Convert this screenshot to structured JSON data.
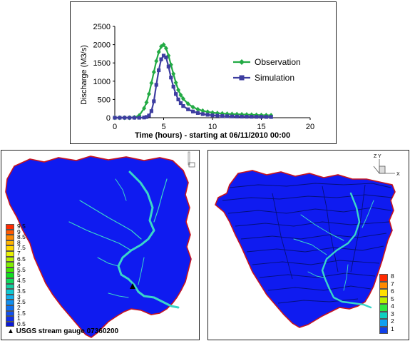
{
  "chart_data": {
    "type": "line",
    "title": "",
    "xlabel": "Time (hours) -   starting at 06/11/2010 00:00",
    "ylabel": "Discharge (M3/s)",
    "xlim": [
      0,
      20
    ],
    "ylim": [
      0,
      2500
    ],
    "x_ticks": [
      "0",
      "5",
      "10",
      "15",
      "20"
    ],
    "y_ticks": [
      "0",
      "500",
      "1000",
      "1500",
      "2000",
      "2500"
    ],
    "grid": false,
    "legend": "right",
    "series": [
      {
        "name": "Observation",
        "color": "#22aa44",
        "marker": "diamond",
        "x": [
          0,
          0.5,
          1,
          1.5,
          2,
          2.5,
          3,
          3.25,
          3.5,
          3.75,
          4,
          4.25,
          4.5,
          4.75,
          5,
          5.25,
          5.5,
          5.75,
          6,
          6.25,
          6.5,
          6.75,
          7,
          7.5,
          8,
          8.5,
          9,
          9.5,
          10,
          10.5,
          11,
          11.5,
          12,
          12.5,
          13,
          13.5,
          14,
          14.5,
          15,
          15.5,
          16
        ],
        "y": [
          0,
          0,
          0,
          0,
          10,
          60,
          260,
          420,
          650,
          950,
          1250,
          1550,
          1800,
          1950,
          2000,
          1900,
          1700,
          1450,
          1200,
          960,
          760,
          620,
          520,
          380,
          290,
          230,
          190,
          160,
          140,
          125,
          115,
          105,
          100,
          95,
          90,
          85,
          80,
          75,
          70,
          68,
          65
        ]
      },
      {
        "name": "Simulation",
        "color": "#3d3da0",
        "marker": "square",
        "x": [
          0,
          0.5,
          1,
          1.5,
          2,
          2.5,
          3,
          3.25,
          3.5,
          3.75,
          4,
          4.25,
          4.5,
          4.75,
          5,
          5.25,
          5.5,
          5.75,
          6,
          6.25,
          6.5,
          6.75,
          7,
          7.5,
          8,
          8.5,
          9,
          9.5,
          10,
          10.5,
          11,
          11.5,
          12,
          12.5,
          13,
          13.5,
          14,
          14.5,
          15,
          15.5,
          16
        ],
        "y": [
          0,
          0,
          0,
          0,
          0,
          0,
          5,
          20,
          60,
          180,
          450,
          900,
          1300,
          1600,
          1700,
          1650,
          1400,
          1100,
          850,
          650,
          500,
          400,
          320,
          230,
          170,
          130,
          100,
          80,
          65,
          55,
          45,
          40,
          35,
          32,
          30,
          28,
          26,
          25,
          24,
          22,
          20
        ]
      }
    ]
  },
  "left_map": {
    "legend_labels": [
      "9.5",
      "9",
      "8.5",
      "8",
      "7.5",
      "7",
      "6.5",
      "6",
      "5.5",
      "5",
      "4.5",
      "4",
      "3.5",
      "3",
      "2.5",
      "2",
      "1.5",
      "1",
      "0.5"
    ],
    "legend_colors": [
      "#ff2a00",
      "#ff5a00",
      "#ff8a00",
      "#ffb400",
      "#ffd800",
      "#e8f000",
      "#b8f000",
      "#80ee00",
      "#40e800",
      "#10e020",
      "#10d860",
      "#10d0a0",
      "#10c8d0",
      "#10b0ee",
      "#1090f0",
      "#1070f0",
      "#1050f0",
      "#1030e8",
      "#0a18d8"
    ],
    "gauge_note": "▲ USGS stream gauge 07360200"
  },
  "right_map": {
    "legend_labels": [
      "8",
      "7",
      "6",
      "5",
      "4",
      "3",
      "2",
      "1"
    ],
    "legend_colors": [
      "#ff2a00",
      "#ff8a00",
      "#ffe000",
      "#b8f000",
      "#30e840",
      "#10d0c0",
      "#10a0f0",
      "#1040e8"
    ],
    "axis_labels": [
      "Z",
      "Y",
      "X"
    ]
  },
  "colors": {
    "basin_fill": "#0f1bf0",
    "basin_outline": "#c8141e",
    "river": "#3ad6c8"
  }
}
